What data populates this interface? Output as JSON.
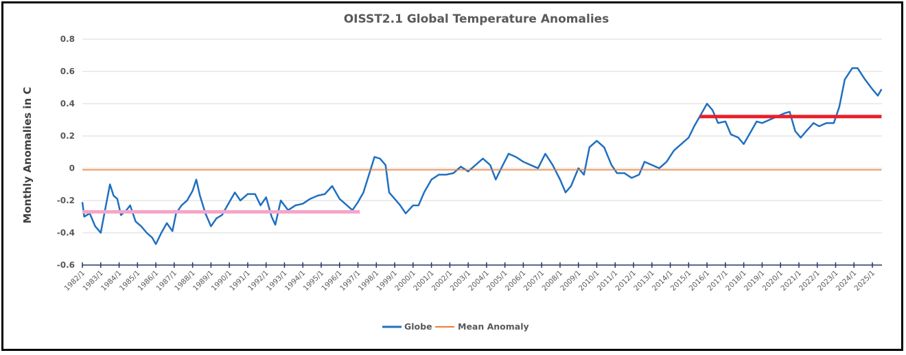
{
  "chart_data": {
    "type": "line",
    "title": "OISST2.1 Global Temperature Anomalies",
    "xlabel": "",
    "ylabel": "Monthly Anomalies in C",
    "ylim": [
      -0.6,
      0.8
    ],
    "yticks": [
      0.8,
      0.6,
      0.4,
      0.2,
      0,
      -0.2,
      -0.4,
      -0.6
    ],
    "ytick_labels": [
      "0.8",
      "0.6",
      "0.4",
      "0.2",
      "0",
      "-0.2",
      "-0.4",
      "-0.6"
    ],
    "xlim": [
      1982.0,
      2025.5
    ],
    "xtick_labels": [
      "1982/1",
      "1983/1",
      "1984/1",
      "1985/1",
      "1986/1",
      "1987/1",
      "1988/1",
      "1989/1",
      "1990/1",
      "1991/1",
      "1992/1",
      "1993/1",
      "1994/1",
      "1995/1",
      "1996/1",
      "1997/1",
      "1998/1",
      "1999/1",
      "2000/1",
      "2001/1",
      "2002/1",
      "2003/1",
      "2004/1",
      "2005/1",
      "2006/1",
      "2007/1",
      "2008/1",
      "2009/1",
      "2010/1",
      "2011/1",
      "2012/1",
      "2013/1",
      "2014/1",
      "2015/1",
      "2016/1",
      "2017/1",
      "2018/1",
      "2019/1",
      "2020/1",
      "2021/1",
      "2022/1",
      "2023/1",
      "2024/1",
      "2025/1"
    ],
    "grid": true,
    "legend_position": "bottom",
    "series": [
      {
        "name": "Globe",
        "color": "#1f6fc0",
        "x": [
          1982.0,
          1982.1,
          1982.4,
          1982.7,
          1983.0,
          1983.2,
          1983.5,
          1983.7,
          1983.9,
          1984.1,
          1984.4,
          1984.6,
          1984.9,
          1985.2,
          1985.5,
          1985.8,
          1986.0,
          1986.3,
          1986.6,
          1986.9,
          1987.1,
          1987.4,
          1987.7,
          1988.0,
          1988.2,
          1988.4,
          1988.7,
          1989.0,
          1989.3,
          1989.6,
          1990.0,
          1990.3,
          1990.6,
          1991.0,
          1991.4,
          1991.7,
          1992.0,
          1992.3,
          1992.5,
          1992.8,
          1993.2,
          1993.6,
          1994.0,
          1994.4,
          1994.8,
          1995.2,
          1995.6,
          1996.0,
          1996.4,
          1996.7,
          1997.0,
          1997.3,
          1997.6,
          1997.9,
          1998.2,
          1998.5,
          1998.7,
          1999.0,
          1999.3,
          1999.6,
          2000.0,
          2000.3,
          2000.6,
          2001.0,
          2001.4,
          2001.8,
          2002.2,
          2002.6,
          2003.0,
          2003.4,
          2003.8,
          2004.2,
          2004.5,
          2004.8,
          2005.2,
          2005.6,
          2006.0,
          2006.4,
          2006.8,
          2007.2,
          2007.6,
          2008.0,
          2008.3,
          2008.6,
          2009.0,
          2009.3,
          2009.6,
          2010.0,
          2010.4,
          2010.8,
          2011.1,
          2011.5,
          2011.9,
          2012.3,
          2012.6,
          2013.0,
          2013.4,
          2013.8,
          2014.2,
          2014.6,
          2015.0,
          2015.3,
          2015.7,
          2016.0,
          2016.3,
          2016.6,
          2017.0,
          2017.3,
          2017.7,
          2018.0,
          2018.3,
          2018.7,
          2019.0,
          2019.4,
          2019.8,
          2020.2,
          2020.5,
          2020.8,
          2021.1,
          2021.4,
          2021.8,
          2022.1,
          2022.5,
          2022.9,
          2023.2,
          2023.5,
          2023.9,
          2024.2,
          2024.6,
          2025.0,
          2025.3,
          2025.5
        ],
        "values": [
          -0.21,
          -0.3,
          -0.28,
          -0.36,
          -0.4,
          -0.28,
          -0.1,
          -0.17,
          -0.19,
          -0.29,
          -0.26,
          -0.23,
          -0.33,
          -0.36,
          -0.4,
          -0.43,
          -0.47,
          -0.4,
          -0.34,
          -0.39,
          -0.28,
          -0.23,
          -0.2,
          -0.14,
          -0.07,
          -0.17,
          -0.28,
          -0.36,
          -0.31,
          -0.29,
          -0.21,
          -0.15,
          -0.2,
          -0.16,
          -0.16,
          -0.23,
          -0.18,
          -0.3,
          -0.35,
          -0.2,
          -0.26,
          -0.23,
          -0.22,
          -0.19,
          -0.17,
          -0.16,
          -0.11,
          -0.19,
          -0.23,
          -0.26,
          -0.21,
          -0.15,
          -0.04,
          0.07,
          0.06,
          0.02,
          -0.15,
          -0.19,
          -0.23,
          -0.28,
          -0.23,
          -0.23,
          -0.15,
          -0.07,
          -0.04,
          -0.04,
          -0.03,
          0.01,
          -0.02,
          0.02,
          0.06,
          0.02,
          -0.07,
          0.0,
          0.09,
          0.07,
          0.04,
          0.02,
          0.0,
          0.09,
          0.02,
          -0.07,
          -0.15,
          -0.11,
          0.0,
          -0.04,
          0.13,
          0.17,
          0.13,
          0.02,
          -0.03,
          -0.03,
          -0.06,
          -0.04,
          0.04,
          0.02,
          0.0,
          0.04,
          0.11,
          0.15,
          0.19,
          0.26,
          0.34,
          0.4,
          0.36,
          0.28,
          0.29,
          0.21,
          0.19,
          0.15,
          0.21,
          0.29,
          0.28,
          0.3,
          0.32,
          0.34,
          0.35,
          0.23,
          0.19,
          0.23,
          0.28,
          0.26,
          0.28,
          0.28,
          0.38,
          0.55,
          0.62,
          0.62,
          0.55,
          0.49,
          0.45,
          0.49
        ]
      },
      {
        "name": "Mean Anomaly",
        "color": "#ed7d31",
        "x": [
          1982.0,
          2025.5
        ],
        "values": [
          -0.01,
          -0.01
        ]
      }
    ],
    "annotations": [
      {
        "type": "hline-segment",
        "label": "",
        "color": "#f4a6c8",
        "x": [
          1982.0,
          1997.1
        ],
        "value": -0.27
      },
      {
        "type": "hline-segment",
        "label": "",
        "color": "#e8202a",
        "x": [
          2015.6,
          2025.5
        ],
        "value": 0.32
      }
    ]
  }
}
